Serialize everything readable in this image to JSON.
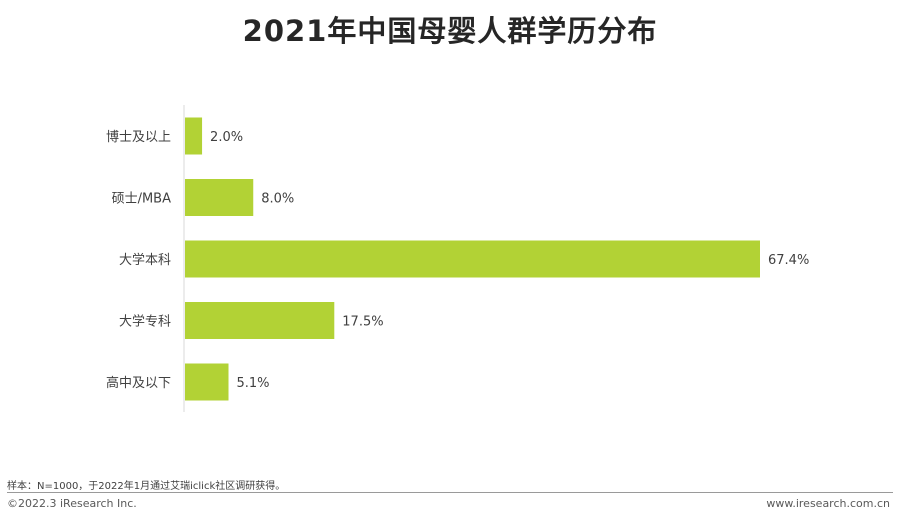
{
  "chart_data": {
    "type": "bar",
    "orientation": "horizontal",
    "title": "2021年中国母婴人群学历分布",
    "categories": [
      "博士及以上",
      "硕士/MBA",
      "大学本科",
      "大学专科",
      "高中及以下"
    ],
    "values": [
      2.0,
      8.0,
      67.4,
      17.5,
      5.1
    ],
    "value_labels": [
      "2.0%",
      "8.0%",
      "67.4%",
      "17.5%",
      "5.1%"
    ],
    "unit": "%",
    "xlim": [
      0,
      67.4
    ],
    "grid": false,
    "legend": "none",
    "bar_color": "#b2d235"
  },
  "footer": {
    "note": "样本：N=1000，于2022年1月通过艾瑞iclick社区调研获得。",
    "copyright": "©2022.3 iResearch Inc.",
    "website": "www.iresearch.com.cn"
  }
}
